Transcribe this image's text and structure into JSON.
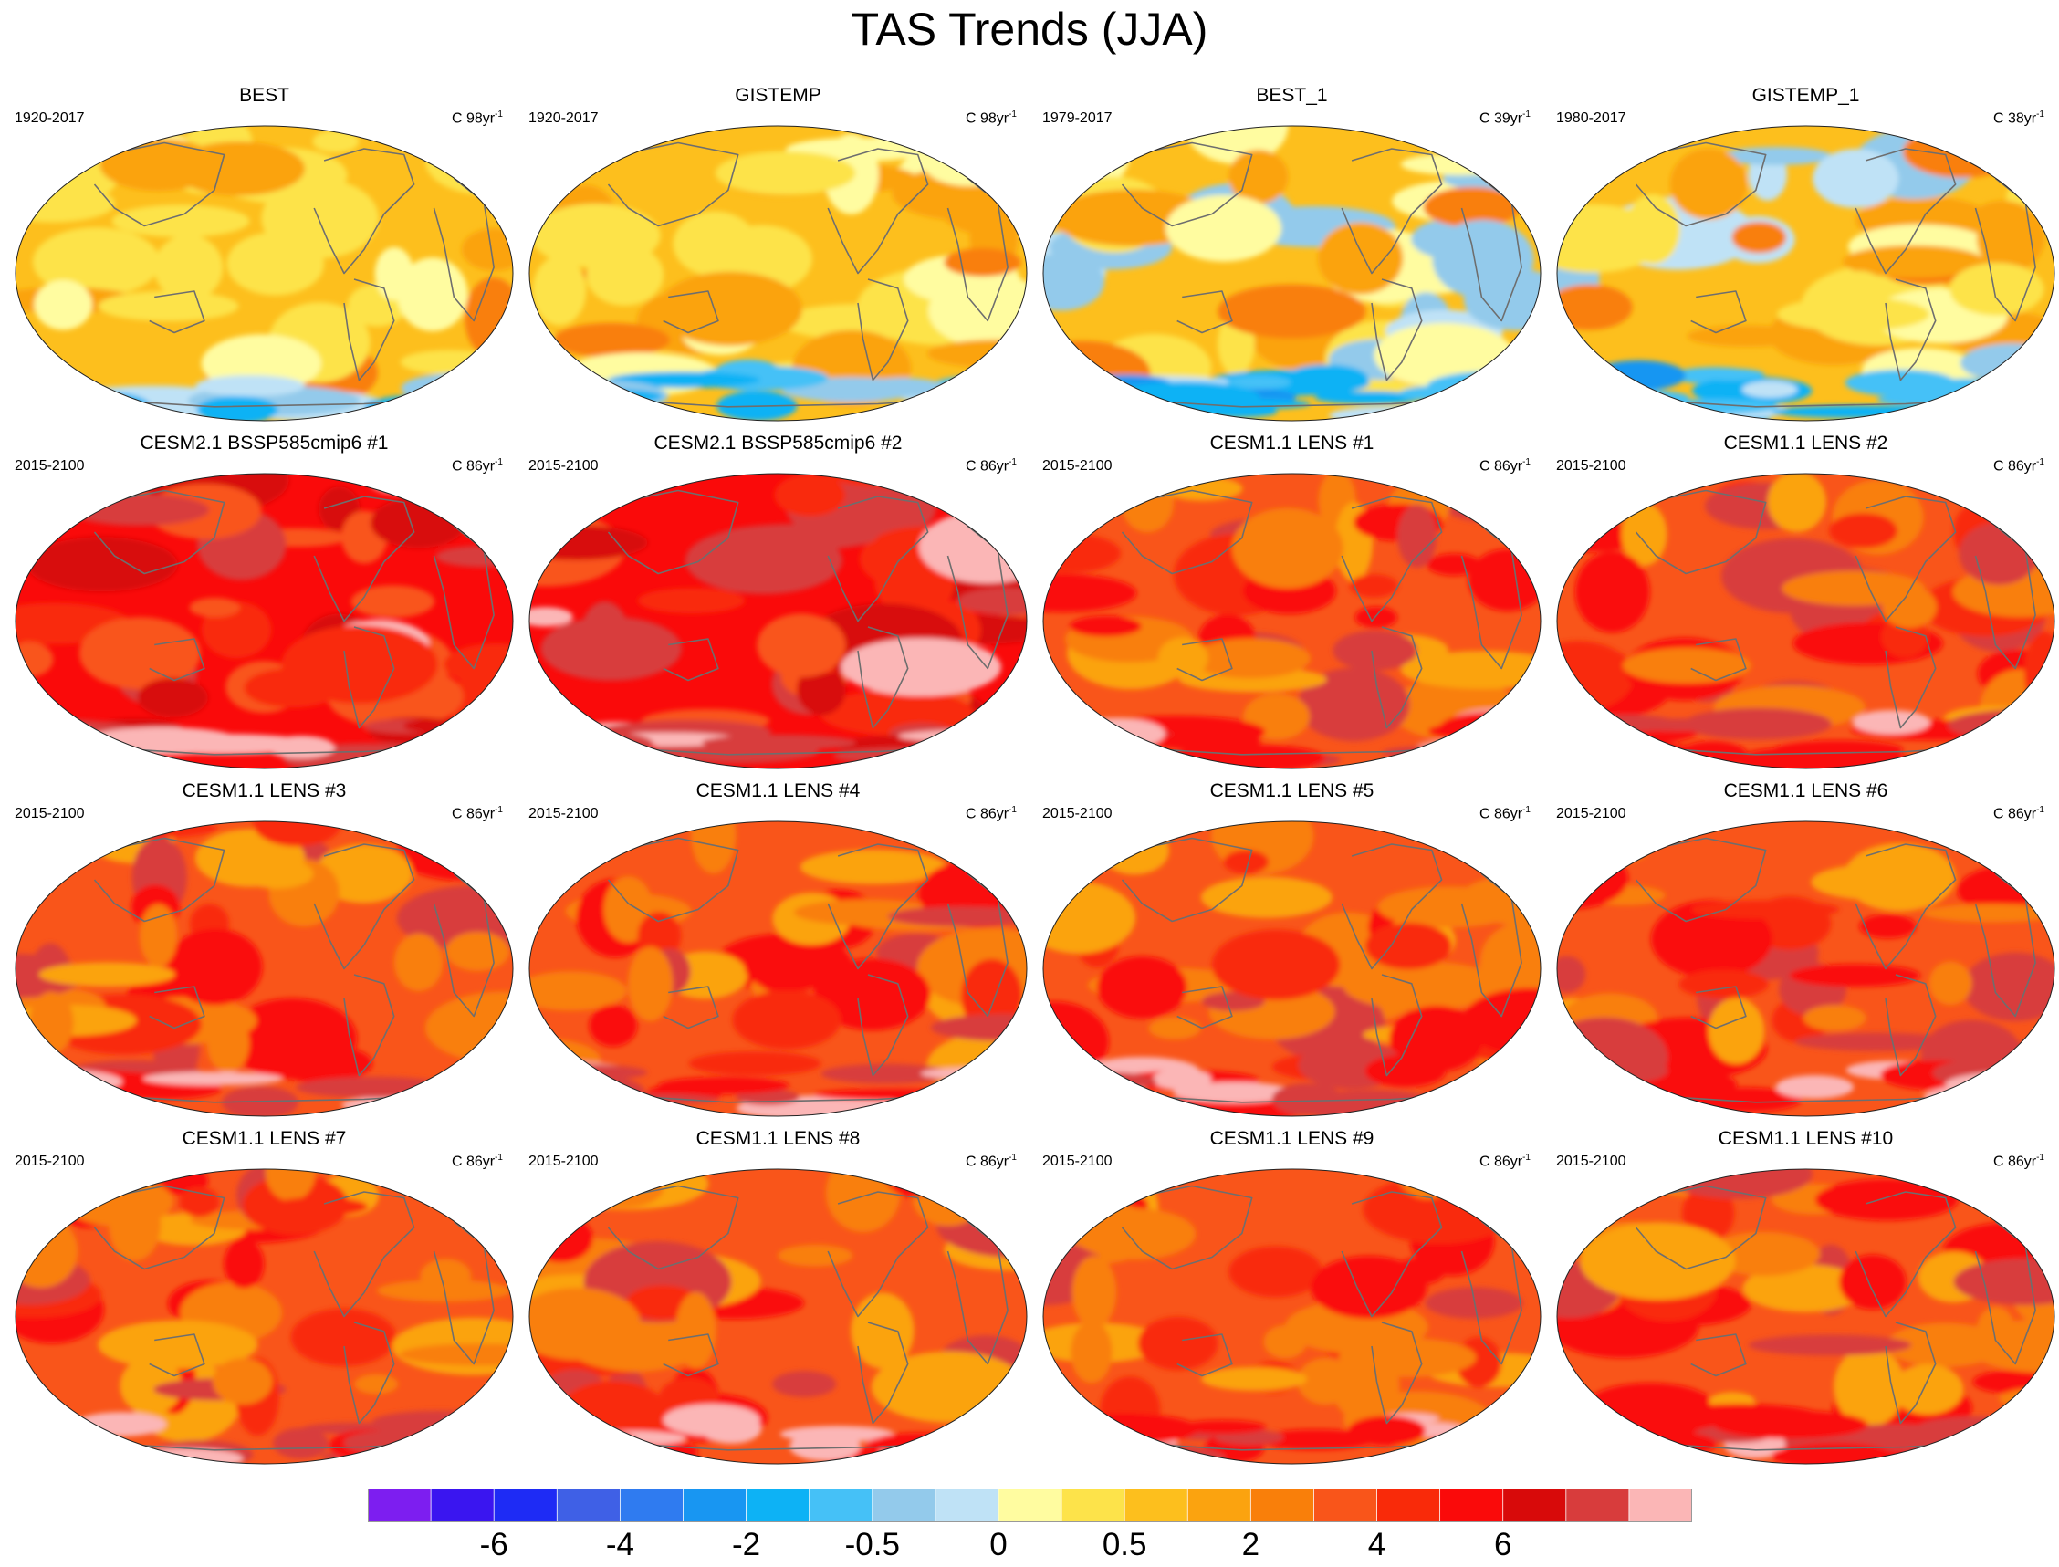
{
  "title": "TAS Trends (JJA)",
  "chart_data": {
    "type": "heatmap",
    "projection": "Robinson-style global maps",
    "grid": "4 columns x 4 rows",
    "colorbar": {
      "orientation": "horizontal",
      "position": "bottom",
      "colors": [
        "#7d1ef0",
        "#3a15f0",
        "#1e2bf5",
        "#3f60e6",
        "#2f7bf0",
        "#1896f2",
        "#0db2f5",
        "#45c1f7",
        "#93caeb",
        "#bfe2f6",
        "#fffca0",
        "#fde34a",
        "#fdbf1d",
        "#fba30f",
        "#f97f0a",
        "#f9551a",
        "#f92a09",
        "#fa0a0a",
        "#d80a0a",
        "#d83c3c",
        "#fbb6b6"
      ],
      "labels": [
        "-6",
        "-4",
        "-2",
        "-0.5",
        "0",
        "0.5",
        "2",
        "4",
        "6"
      ]
    },
    "panels": [
      {
        "title": "BEST",
        "period": "1920-2017",
        "unit": "C 98yr",
        "unit_exp": "-1",
        "dominant_range": "0.5 to 2"
      },
      {
        "title": "GISTEMP",
        "period": "1920-2017",
        "unit": "C 98yr",
        "unit_exp": "-1",
        "dominant_range": "0.5 to 2"
      },
      {
        "title": "BEST_1",
        "period": "1979-2017",
        "unit": "C 39yr",
        "unit_exp": "-1",
        "dominant_range": "0 to 2"
      },
      {
        "title": "GISTEMP_1",
        "period": "1980-2017",
        "unit": "C 38yr",
        "unit_exp": "-1",
        "dominant_range": "0 to 2"
      },
      {
        "title": "CESM2.1 BSSP585cmip6 #1",
        "period": "2015-2100",
        "unit": "C 86yr",
        "unit_exp": "-1",
        "dominant_range": "4 to 6"
      },
      {
        "title": "CESM2.1 BSSP585cmip6 #2",
        "period": "2015-2100",
        "unit": "C 86yr",
        "unit_exp": "-1",
        "dominant_range": "4 to 6"
      },
      {
        "title": "CESM1.1 LENS #1",
        "period": "2015-2100",
        "unit": "C 86yr",
        "unit_exp": "-1",
        "dominant_range": "2 to 4"
      },
      {
        "title": "CESM1.1 LENS #2",
        "period": "2015-2100",
        "unit": "C 86yr",
        "unit_exp": "-1",
        "dominant_range": "2 to 4"
      },
      {
        "title": "CESM1.1 LENS #3",
        "period": "2015-2100",
        "unit": "C 86yr",
        "unit_exp": "-1",
        "dominant_range": "2 to 4"
      },
      {
        "title": "CESM1.1 LENS #4",
        "period": "2015-2100",
        "unit": "C 86yr",
        "unit_exp": "-1",
        "dominant_range": "2 to 4"
      },
      {
        "title": "CESM1.1 LENS #5",
        "period": "2015-2100",
        "unit": "C 86yr",
        "unit_exp": "-1",
        "dominant_range": "2 to 4"
      },
      {
        "title": "CESM1.1 LENS #6",
        "period": "2015-2100",
        "unit": "C 86yr",
        "unit_exp": "-1",
        "dominant_range": "2 to 4"
      },
      {
        "title": "CESM1.1 LENS #7",
        "period": "2015-2100",
        "unit": "C 86yr",
        "unit_exp": "-1",
        "dominant_range": "2 to 4"
      },
      {
        "title": "CESM1.1 LENS #8",
        "period": "2015-2100",
        "unit": "C 86yr",
        "unit_exp": "-1",
        "dominant_range": "2 to 4"
      },
      {
        "title": "CESM1.1 LENS #9",
        "period": "2015-2100",
        "unit": "C 86yr",
        "unit_exp": "-1",
        "dominant_range": "2 to 4"
      },
      {
        "title": "CESM1.1 LENS #10",
        "period": "2015-2100",
        "unit": "C 86yr",
        "unit_exp": "-1",
        "dominant_range": "2 to 4"
      }
    ]
  }
}
